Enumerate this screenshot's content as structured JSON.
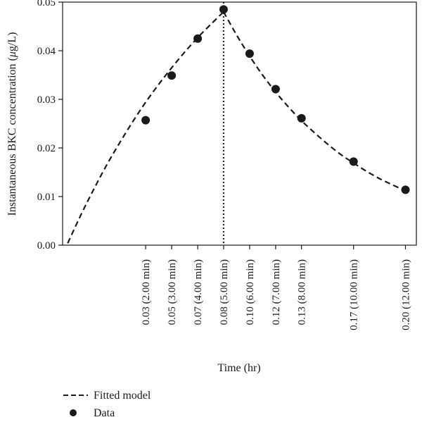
{
  "chart_data": {
    "type": "line",
    "xlabel": "Time (hr)",
    "ylabel": "Instantaneous BKC concentration (μg/L)",
    "ylim": [
      0.0,
      0.05
    ],
    "xlim": [
      -0.02,
      0.207
    ],
    "y_ticks": [
      {
        "value": 0.0,
        "label": "0.00"
      },
      {
        "value": 0.01,
        "label": "0.01"
      },
      {
        "value": 0.02,
        "label": "0.02"
      },
      {
        "value": 0.03,
        "label": "0.03"
      },
      {
        "value": 0.04,
        "label": "0.04"
      },
      {
        "value": 0.05,
        "label": "0.05"
      }
    ],
    "x_ticks": [
      {
        "value": 0.0333,
        "label": "0.03 (2.00 min)"
      },
      {
        "value": 0.05,
        "label": "0.05 (3.00 min)"
      },
      {
        "value": 0.0667,
        "label": "0.07 (4.00 min)"
      },
      {
        "value": 0.0833,
        "label": "0.08 (5.00 min)"
      },
      {
        "value": 0.1,
        "label": "0.10 (6.00 min)"
      },
      {
        "value": 0.1167,
        "label": "0.12 (7.00 min)"
      },
      {
        "value": 0.1333,
        "label": "0.13 (8.00 min)"
      },
      {
        "value": 0.1667,
        "label": "0.17 (10.00 min)"
      },
      {
        "value": 0.2,
        "label": "0.20 (12.00 min)"
      }
    ],
    "series": [
      {
        "name": "Fitted model",
        "style": "dashed",
        "color": "#1a1a1a",
        "x": [
          -0.0167,
          -0.0083,
          0.0,
          0.0083,
          0.0167,
          0.025,
          0.0333,
          0.0417,
          0.05,
          0.0583,
          0.0667,
          0.075,
          0.0833,
          0.0917,
          0.1,
          0.1083,
          0.1167,
          0.125,
          0.1333,
          0.1417,
          0.15,
          0.1583,
          0.1667,
          0.175,
          0.1833,
          0.1917,
          0.2
        ],
        "y": [
          0.0004,
          0.0062,
          0.0115,
          0.0165,
          0.0211,
          0.0254,
          0.0294,
          0.0331,
          0.0365,
          0.0397,
          0.0427,
          0.0454,
          0.048,
          0.0432,
          0.0389,
          0.035,
          0.0315,
          0.0284,
          0.0256,
          0.0231,
          0.0208,
          0.0187,
          0.0169,
          0.0152,
          0.0137,
          0.0124,
          0.0112
        ]
      },
      {
        "name": "Data",
        "style": "markers",
        "color": "#1a1a1a",
        "x": [
          0.0333,
          0.05,
          0.0667,
          0.0833,
          0.1,
          0.1167,
          0.1333,
          0.1667,
          0.2
        ],
        "y": [
          0.0257,
          0.0349,
          0.0425,
          0.0485,
          0.0394,
          0.0321,
          0.0261,
          0.0172,
          0.0114
        ]
      }
    ],
    "vline": {
      "x": 0.0833,
      "style": "dotted"
    },
    "legend": {
      "placement": "bottom-left"
    },
    "grid": false
  }
}
